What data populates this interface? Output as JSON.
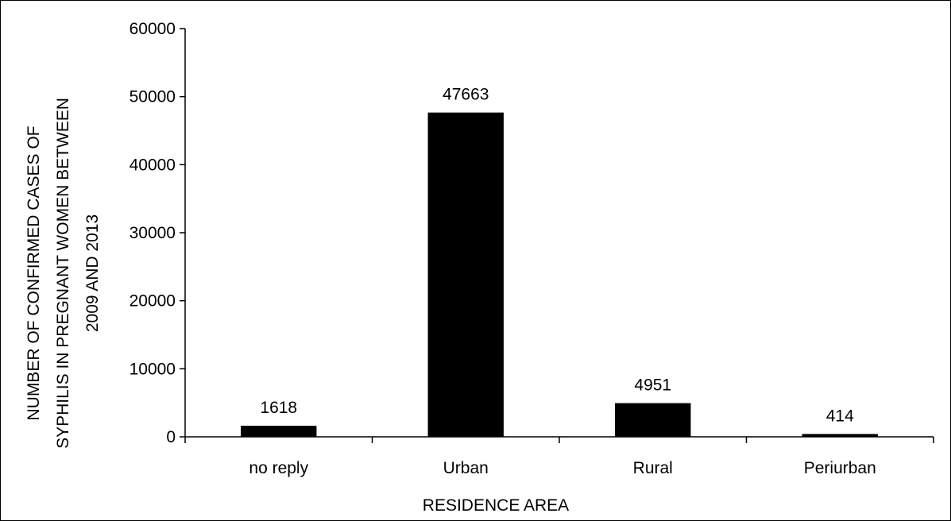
{
  "chart_data": {
    "type": "bar",
    "categories": [
      "no reply",
      "Urban",
      "Rural",
      "Periurban"
    ],
    "values": [
      1618,
      47663,
      4951,
      414
    ],
    "data_labels": [
      "1618",
      "47663",
      "4951",
      "414"
    ],
    "title": "",
    "xlabel": "RESIDENCE AREA",
    "ylabel_lines": [
      "NUMBER OF CONFIRMED CASES OF",
      "SYPHILIS IN PREGNANT WOMEN BETWEEN",
      "2009 AND 2013"
    ],
    "ylim": [
      0,
      60000
    ],
    "yticks": [
      0,
      10000,
      20000,
      30000,
      40000,
      50000,
      60000
    ],
    "ytick_labels": [
      "0",
      "10000",
      "20000",
      "30000",
      "40000",
      "50000",
      "60000"
    ],
    "grid": false,
    "legend": "none",
    "bar_color": "#000000"
  }
}
